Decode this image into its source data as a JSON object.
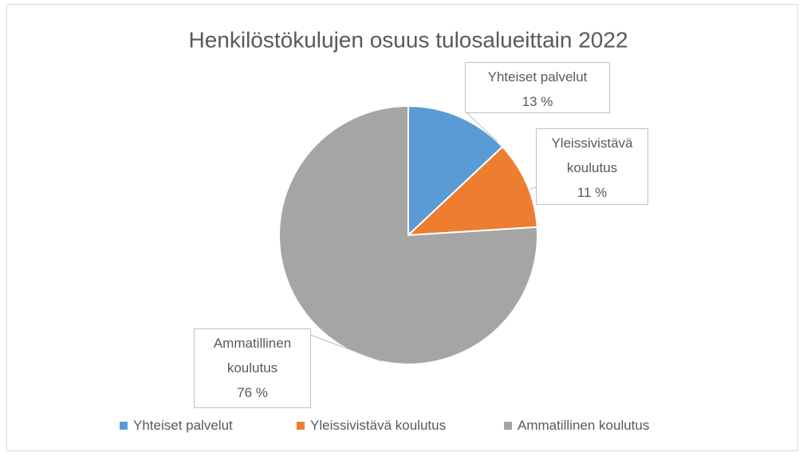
{
  "chart_data": {
    "type": "pie",
    "title": "Henkilöstökulujen osuus tulosalueittain 2022",
    "categories": [
      "Yhteiset palvelut",
      "Yleissivistävä koulutus",
      "Ammatillinen koulutus"
    ],
    "values": [
      13,
      11,
      76
    ],
    "value_labels": [
      "13 %",
      "11 %",
      "76 %"
    ],
    "colors": [
      "#5b9bd5",
      "#ed7d31",
      "#a5a5a5"
    ],
    "legend": "bottom"
  }
}
